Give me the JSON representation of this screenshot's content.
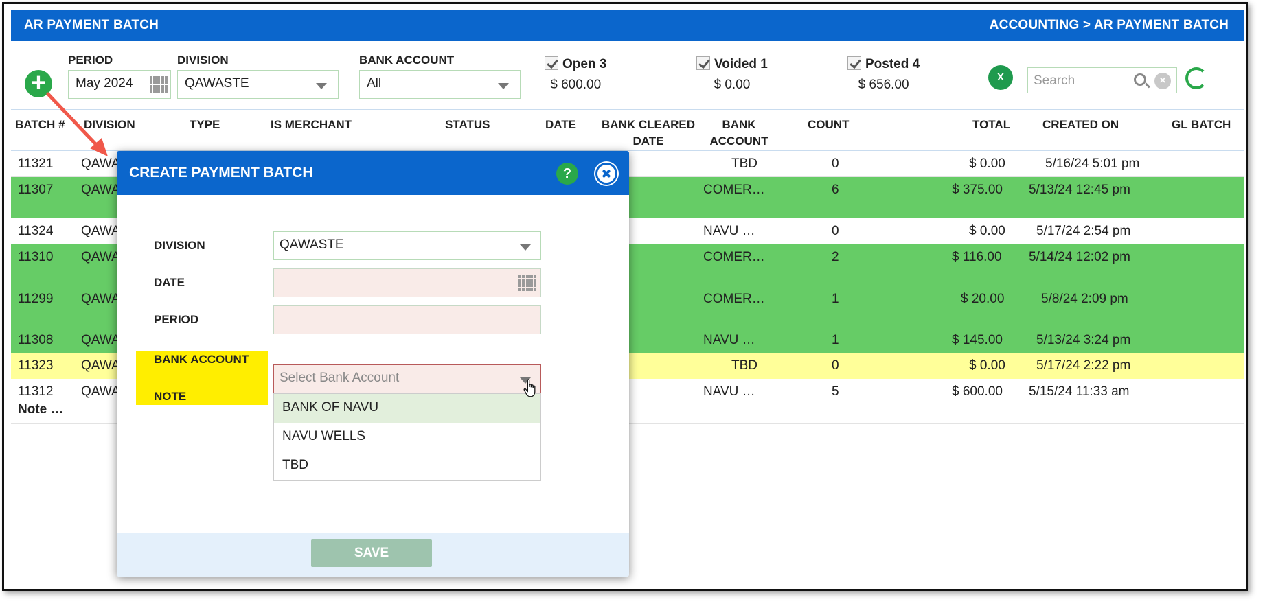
{
  "header": {
    "title": "AR PAYMENT BATCH",
    "breadcrumb": "ACCOUNTING > AR PAYMENT BATCH"
  },
  "filters": {
    "period_label": "PERIOD",
    "period_value": "May 2024",
    "division_label": "DIVISION",
    "division_value": "QAWASTE",
    "bank_label": "BANK ACCOUNT",
    "bank_value": "All"
  },
  "stats": [
    {
      "label": "Open 3",
      "amount": "$ 600.00"
    },
    {
      "label": "Voided 1",
      "amount": "$ 0.00"
    },
    {
      "label": "Posted 4",
      "amount": "$ 656.00"
    }
  ],
  "search": {
    "placeholder": "Search"
  },
  "table": {
    "headers": [
      "BATCH #",
      "DIVISION",
      "TYPE",
      "IS MERCHANT",
      "STATUS",
      "DATE",
      "BANK CLEARED DATE",
      "BANK ACCOUNT",
      "COUNT",
      "TOTAL",
      "CREATED ON",
      "GL BATCH"
    ],
    "rows": [
      {
        "batch": "11321",
        "division": "QAWA",
        "bank": "TBD",
        "count": "0",
        "total": "$ 0.00",
        "created": "5/16/24 5:01 pm",
        "note": ""
      },
      {
        "batch": "11307",
        "division": "QAWA",
        "bank": "COMER…",
        "count": "6",
        "total": "$ 375.00",
        "created": "5/13/24 12:45 pm",
        "note": ""
      },
      {
        "batch": "11324",
        "division": "QAWA",
        "bank": "NAVU …",
        "count": "0",
        "total": "$ 0.00",
        "created": "5/17/24 2:54 pm",
        "note": ""
      },
      {
        "batch": "11310",
        "division": "QAWA",
        "bank": "COMER…",
        "count": "2",
        "total": "$ 116.00",
        "created": "5/14/24 12:02 pm",
        "note": ""
      },
      {
        "batch": "11299",
        "division": "QAWA",
        "bank": "COMER…",
        "count": "1",
        "total": "$ 20.00",
        "created": "5/8/24 2:09 pm",
        "note": ""
      },
      {
        "batch": "11308",
        "division": "QAWA",
        "bank": "NAVU …",
        "count": "1",
        "total": "$ 145.00",
        "created": "5/13/24 3:24 pm",
        "note": ""
      },
      {
        "batch": "11323",
        "division": "QAWA",
        "bank": "TBD",
        "count": "0",
        "total": "$ 0.00",
        "created": "5/17/24 2:22 pm",
        "note": ""
      },
      {
        "batch": "11312",
        "division": "QAWA",
        "bank": "NAVU …",
        "count": "5",
        "total": "$ 600.00",
        "created": "5/15/24 11:33 am",
        "note": "Note …"
      }
    ]
  },
  "modal": {
    "title": "CREATE PAYMENT BATCH",
    "help": "?",
    "division_label": "DIVISION",
    "division_value": "QAWASTE",
    "date_label": "DATE",
    "period_label": "PERIOD",
    "bank_label": "BANK ACCOUNT",
    "bank_placeholder": "Select Bank Account",
    "note_label": "NOTE",
    "bank_options": [
      "BANK OF NAVU",
      "NAVU WELLS",
      "TBD"
    ],
    "save_label": "SAVE"
  },
  "icons": {
    "add": "plus-circle-icon",
    "excel": "excel-icon",
    "excel_glyph": "X",
    "refresh": "refresh-icon"
  },
  "colors": {
    "header_blue": "#0b66cc",
    "row_green": "#66cc66",
    "row_yellow": "#ffff99",
    "highlight_yellow": "#ffee00",
    "annotation_arrow": "#f0584a"
  }
}
